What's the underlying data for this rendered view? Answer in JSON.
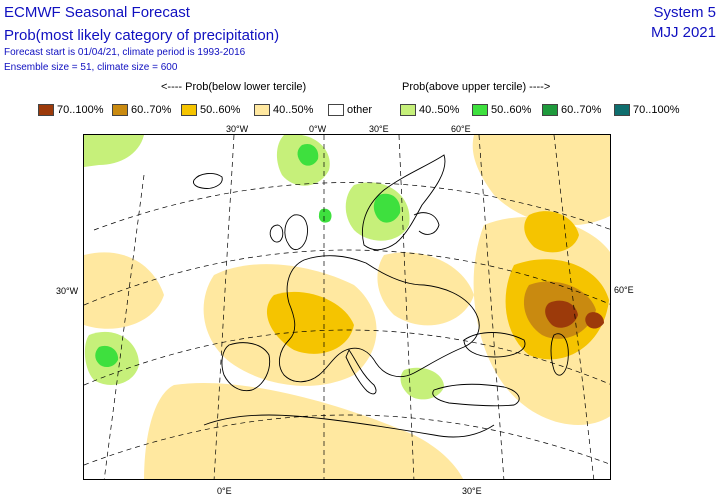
{
  "header": {
    "title": "ECMWF Seasonal Forecast",
    "subtitle": "Prob(most likely category of precipitation)",
    "forecast_line": "Forecast start is 01/04/21, climate period is 1993-2016",
    "ensemble_line": "Ensemble size = 51, climate size = 600",
    "system": "System 5",
    "period": "MJJ 2021"
  },
  "legend_heading": {
    "below": "<---- Prob(below lower tercile)",
    "above": "Prob(above upper tercile) ---->"
  },
  "legend": [
    {
      "label": "70..100%",
      "color": "#9c3a0a"
    },
    {
      "label": "60..70%",
      "color": "#c98a10"
    },
    {
      "label": "50..60%",
      "color": "#f5c400"
    },
    {
      "label": "40..50%",
      "color": "#ffe8a0"
    },
    {
      "label": "other",
      "color": "#ffffff"
    },
    {
      "label": "40..50%",
      "color": "#c6f07a"
    },
    {
      "label": "50..60%",
      "color": "#3ee03e"
    },
    {
      "label": "60..70%",
      "color": "#1e9a3c"
    },
    {
      "label": "70..100%",
      "color": "#0f6e6e"
    }
  ],
  "map_labels": {
    "top": [
      "30°W",
      "0°W",
      "30°E",
      "60°E"
    ],
    "left": "30°W",
    "right": "60°E",
    "bottom": [
      "0°E",
      "30°E"
    ]
  }
}
